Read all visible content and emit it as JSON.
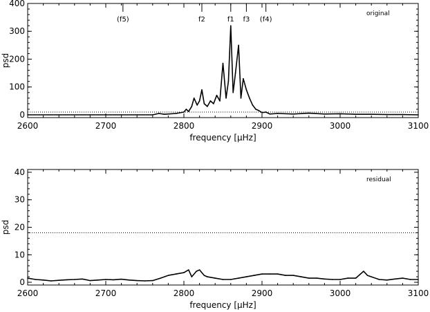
{
  "chart_data": [
    {
      "type": "line",
      "xlabel": "frequency [μHz]",
      "ylabel": "psd",
      "xlim": [
        2600,
        3100
      ],
      "ylim": [
        -10,
        400
      ],
      "xticks": [
        2600,
        2700,
        2800,
        2900,
        3000,
        3100
      ],
      "yticks": [
        0,
        100,
        200,
        300,
        400
      ],
      "legend_text": "original",
      "threshold": 10,
      "peak_labels": [
        {
          "label": "(f5)",
          "x": 2722
        },
        {
          "label": "f2",
          "x": 2823
        },
        {
          "label": "f1",
          "x": 2860
        },
        {
          "label": "f3",
          "x": 2880
        },
        {
          "label": "(f4)",
          "x": 2905
        }
      ],
      "series": [
        {
          "x": [
            2600,
            2640,
            2680,
            2700,
            2720,
            2740,
            2760,
            2768,
            2775,
            2790,
            2800,
            2803,
            2806,
            2810,
            2813,
            2817,
            2820,
            2823,
            2826,
            2830,
            2834,
            2838,
            2842,
            2846,
            2850,
            2854,
            2857,
            2860,
            2863,
            2866,
            2870,
            2873,
            2876,
            2880,
            2884,
            2888,
            2892,
            2896,
            2900,
            2905,
            2910,
            2920,
            2940,
            2960,
            2980,
            3000,
            3020,
            3040,
            3060,
            3080,
            3100
          ],
          "y": [
            0,
            0,
            0,
            0,
            0,
            0,
            0,
            5,
            2,
            5,
            10,
            20,
            12,
            30,
            60,
            35,
            50,
            90,
            40,
            30,
            50,
            40,
            70,
            50,
            185,
            60,
            120,
            320,
            80,
            150,
            250,
            60,
            130,
            90,
            60,
            35,
            20,
            15,
            8,
            10,
            3,
            5,
            3,
            6,
            3,
            4,
            2,
            2,
            1,
            1,
            0
          ]
        }
      ]
    },
    {
      "type": "line",
      "xlabel": "frequency [μHz]",
      "ylabel": "psd",
      "xlim": [
        2600,
        3100
      ],
      "ylim": [
        -1,
        41
      ],
      "xticks": [
        2600,
        2700,
        2800,
        2900,
        3000,
        3100
      ],
      "yticks": [
        0,
        10,
        20,
        30,
        40
      ],
      "legend_text": "residual",
      "threshold": 18,
      "series": [
        {
          "x": [
            2600,
            2610,
            2620,
            2630,
            2640,
            2650,
            2660,
            2670,
            2680,
            2690,
            2700,
            2710,
            2720,
            2730,
            2740,
            2750,
            2760,
            2770,
            2780,
            2790,
            2800,
            2806,
            2810,
            2816,
            2820,
            2826,
            2830,
            2840,
            2850,
            2860,
            2870,
            2880,
            2890,
            2900,
            2910,
            2920,
            2930,
            2940,
            2950,
            2960,
            2970,
            2980,
            2990,
            3000,
            3010,
            3020,
            3030,
            3035,
            3040,
            3050,
            3060,
            3070,
            3080,
            3090,
            3100
          ],
          "y": [
            1.5,
            1,
            0.8,
            0.5,
            0.7,
            0.9,
            1,
            1.2,
            0.6,
            0.8,
            1,
            0.9,
            1.1,
            0.8,
            0.6,
            0.5,
            0.6,
            1.5,
            2.5,
            3,
            3.5,
            4.5,
            2,
            4,
            4.5,
            2.5,
            2,
            1.5,
            1,
            1,
            1.5,
            2,
            2.5,
            3,
            3,
            3,
            2.5,
            2.5,
            2,
            1.5,
            1.5,
            1.2,
            1,
            1,
            1.5,
            1.5,
            4,
            2.5,
            2,
            1,
            0.8,
            1.2,
            1.5,
            1,
            1
          ]
        }
      ]
    }
  ]
}
